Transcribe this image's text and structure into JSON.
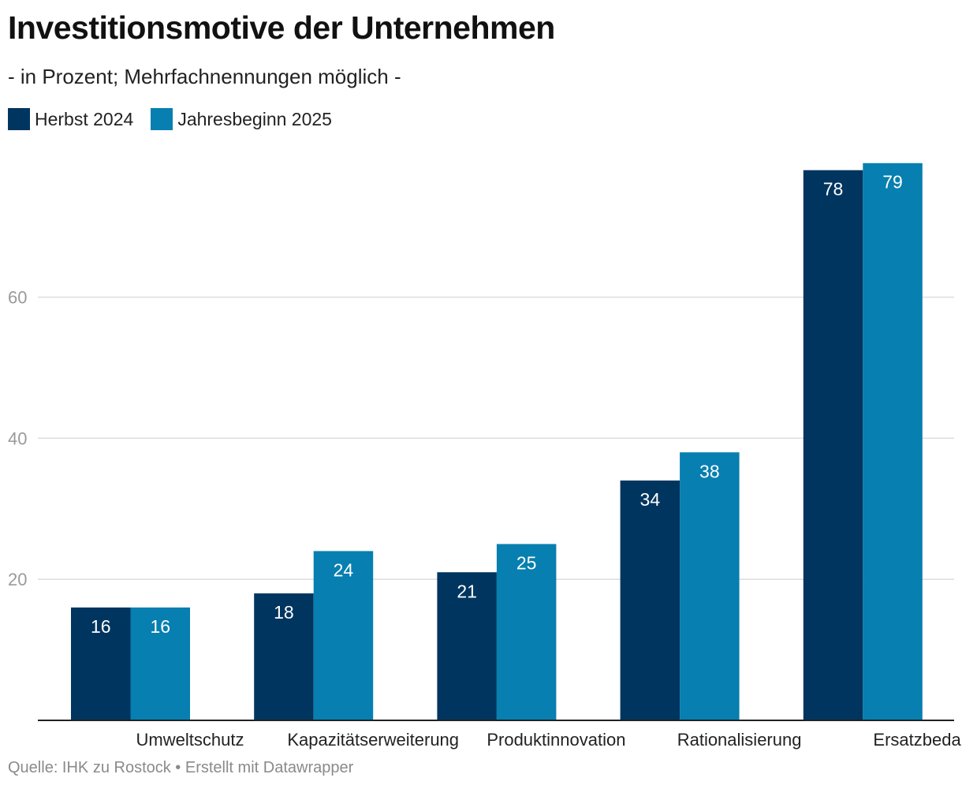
{
  "title": "Investitionsmotive der Unternehmen",
  "subtitle": "- in Prozent; Mehrfachnennungen möglich -",
  "footer": "Quelle: IHK zu Rostock • Erstellt mit Datawrapper",
  "colors": {
    "series1": "#00355f",
    "series2": "#077fb0",
    "grid": "#dddddd",
    "tick": "#9a9a9a",
    "axis": "#222222"
  },
  "chart_data": {
    "type": "bar",
    "categories": [
      "Umweltschutz",
      "Kapazitätserweiterung",
      "Produktinnovation",
      "Rationalisierung",
      "Ersatzbedarf"
    ],
    "series": [
      {
        "name": "Herbst 2024",
        "values": [
          16,
          18,
          21,
          34,
          78
        ]
      },
      {
        "name": "Jahresbeginn 2025",
        "values": [
          16,
          24,
          25,
          38,
          79
        ]
      }
    ],
    "yticks": [
      "20",
      "40",
      "60"
    ],
    "ylim": [
      0,
      80
    ],
    "grid": true,
    "legend": "top-left",
    "data_labels": true
  }
}
